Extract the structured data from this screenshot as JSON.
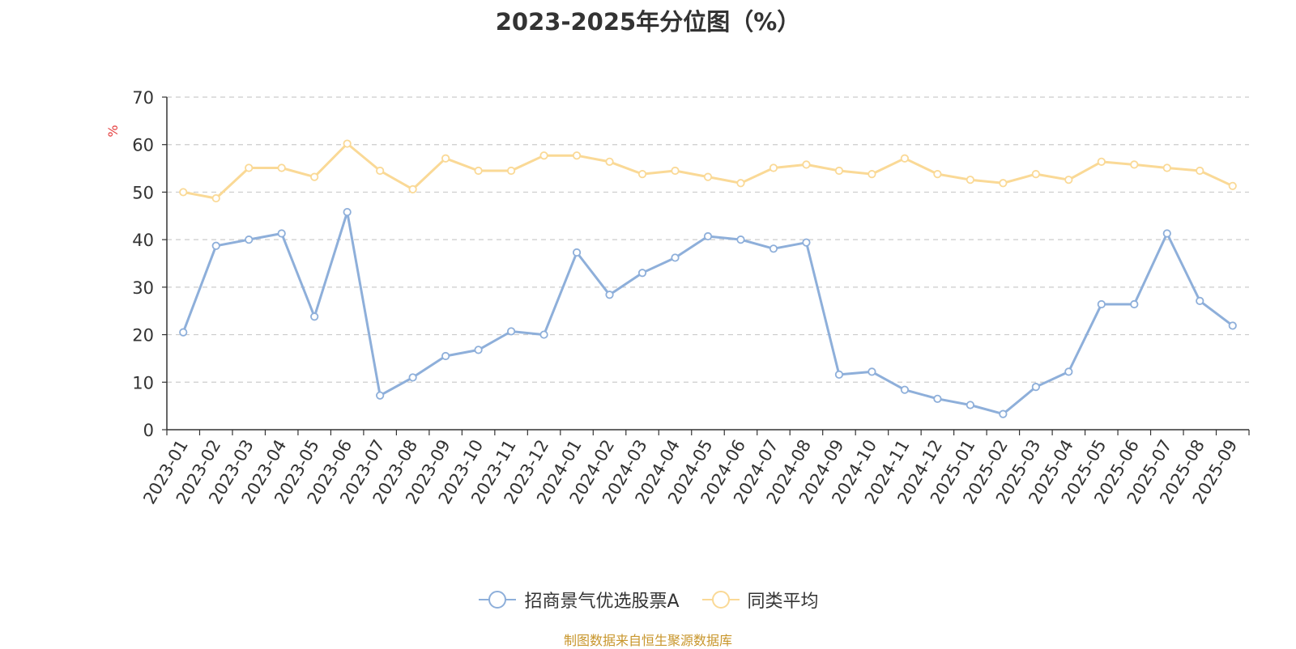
{
  "chart_data": {
    "type": "line",
    "title": "2023-2025年分位图（%）",
    "ylabel": "%",
    "ylim": [
      0,
      70
    ],
    "yticks": [
      0,
      10,
      20,
      30,
      40,
      50,
      60,
      70
    ],
    "grid": true,
    "legend_position": "bottom-center",
    "categories": [
      "2023-01",
      "2023-02",
      "2023-03",
      "2023-04",
      "2023-05",
      "2023-06",
      "2023-07",
      "2023-08",
      "2023-09",
      "2023-10",
      "2023-11",
      "2023-12",
      "2024-01",
      "2024-02",
      "2024-03",
      "2024-04",
      "2024-05",
      "2024-06",
      "2024-07",
      "2024-08",
      "2024-09",
      "2024-10",
      "2024-11",
      "2024-12",
      "2025-01",
      "2025-02",
      "2025-03",
      "2025-04",
      "2025-05",
      "2025-06",
      "2025-07",
      "2025-08",
      "2025-09"
    ],
    "series": [
      {
        "name": "招商景气优选股票A",
        "color": "#8eafda",
        "values": [
          20.5,
          38.7,
          40.0,
          41.3,
          23.8,
          45.8,
          7.2,
          11.0,
          15.5,
          16.8,
          20.7,
          20.0,
          37.3,
          28.4,
          33.0,
          36.2,
          40.7,
          40.0,
          38.1,
          39.4,
          11.6,
          12.2,
          8.4,
          6.5,
          5.2,
          3.3,
          9.0,
          12.2,
          26.4,
          26.4,
          41.3,
          27.1,
          21.9
        ]
      },
      {
        "name": "同类平均",
        "color": "#fad996",
        "values": [
          50.0,
          48.7,
          55.1,
          55.1,
          53.2,
          60.2,
          54.5,
          50.6,
          57.1,
          54.5,
          54.5,
          57.7,
          57.7,
          56.4,
          53.8,
          54.5,
          53.2,
          51.9,
          55.1,
          55.8,
          54.5,
          53.8,
          57.1,
          53.8,
          52.6,
          51.9,
          53.8,
          52.6,
          56.4,
          55.8,
          55.1,
          54.5,
          51.3
        ]
      }
    ]
  },
  "ylabel_color": "#e43c3c",
  "footer": {
    "source": "制图数据来自恒生聚源数据库",
    "color": "#c8962c"
  }
}
